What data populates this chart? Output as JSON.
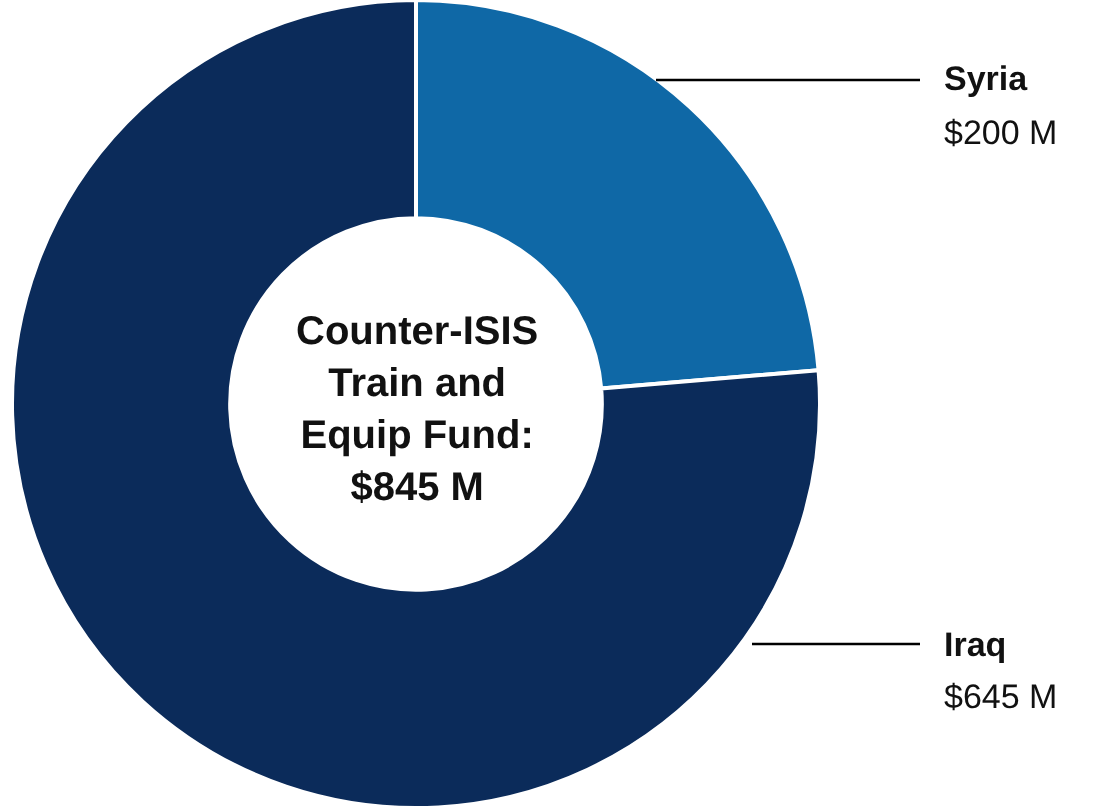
{
  "chart_data": {
    "type": "donut",
    "title": "Counter-ISIS\nTrain and\nEquip Fund:\n$845 M",
    "categories": [
      "Syria",
      "Iraq"
    ],
    "values": [
      200,
      645
    ],
    "colors": [
      "#0f68a6",
      "#0b2b5a"
    ],
    "value_labels": [
      "$200 M",
      "$645 M"
    ],
    "legend": false
  }
}
